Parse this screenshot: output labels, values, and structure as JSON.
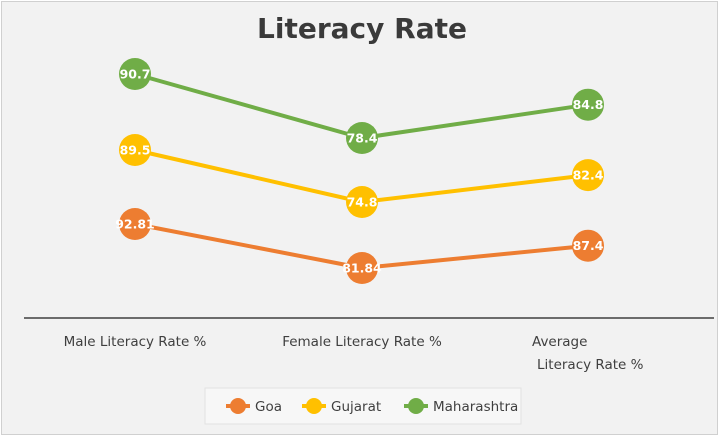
{
  "chart_data": {
    "type": "line",
    "title": "Literacy Rate",
    "categories": [
      [
        "Male Literacy Rate %"
      ],
      [
        "Female Literacy Rate %"
      ],
      [
        "Average",
        "Literacy Rate %"
      ]
    ],
    "series": [
      {
        "name": "Goa",
        "color": "#ed7d31",
        "values": [
          92.81,
          81.84,
          87.4
        ],
        "labels": [
          "92.81",
          "81.84",
          "87.4"
        ]
      },
      {
        "name": "Gujarat",
        "color": "#ffc000",
        "values": [
          89.5,
          74.8,
          82.4
        ],
        "labels": [
          "89.5",
          "74.8",
          "82.4"
        ]
      },
      {
        "name": "Maharashtra",
        "color": "#70ad47",
        "values": [
          90.7,
          78.4,
          84.8
        ],
        "labels": [
          "90.7",
          "78.4",
          "84.8"
        ]
      }
    ],
    "legend_position": "bottom",
    "grid": false,
    "xlabel": "",
    "ylabel": ""
  }
}
